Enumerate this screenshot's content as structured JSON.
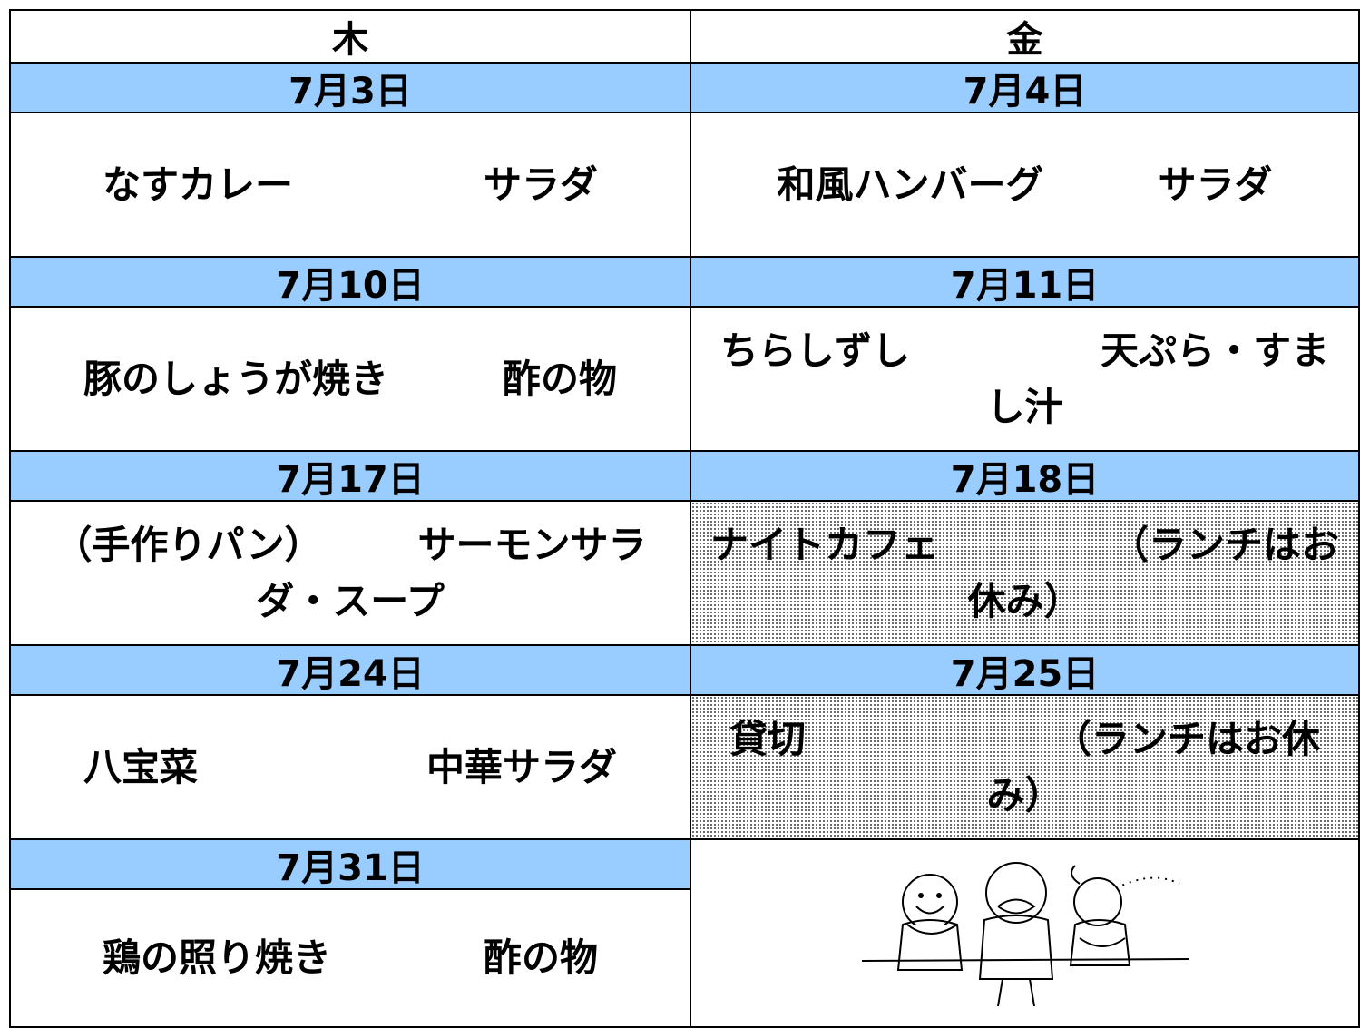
{
  "table": {
    "headers": [
      "木",
      "金"
    ],
    "weeks": [
      {
        "cells": [
          {
            "date": "7月3日",
            "menu": "なすカレー　　　　　サラダ"
          },
          {
            "date": "7月4日",
            "menu": "和風ハンバーグ　　　サラダ"
          }
        ]
      },
      {
        "cells": [
          {
            "date": "7月10日",
            "menu": "豚のしょうが焼き　　　酢の物"
          },
          {
            "date": "7月11日",
            "menu": "ちらしずし　　　　　天ぷら・すまし汁"
          }
        ]
      },
      {
        "cells": [
          {
            "date": "7月17日",
            "menu": "（手作りパン）　　　サーモンサラダ・スープ"
          },
          {
            "date": "7月18日",
            "menu": "ナイトカフェ　　　　　（ランチはお休み）"
          }
        ]
      },
      {
        "cells": [
          {
            "date": "7月24日",
            "menu": "八宝菜　　　　　　中華サラダ"
          },
          {
            "date": "7月25日",
            "menu": "貸切　　　　　　　（ランチはお休み）"
          }
        ]
      },
      {
        "cells": [
          {
            "date": "7月31日",
            "menu": "鶏の照り焼き　　　　酢の物"
          }
        ]
      }
    ]
  }
}
